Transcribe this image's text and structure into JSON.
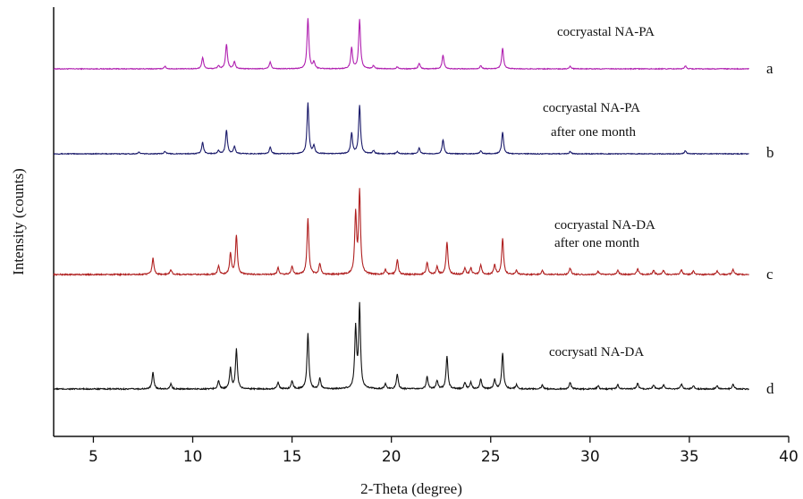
{
  "chart_data": {
    "type": "line",
    "title": "",
    "xlabel": "2-Theta (degree)",
    "ylabel": "Intensity (counts)",
    "xlim": [
      3,
      40
    ],
    "x_ticks": [
      "5",
      "10",
      "15",
      "20",
      "25",
      "30",
      "35",
      "40"
    ],
    "y_ticks_shown": false,
    "grid": false,
    "series": [
      {
        "name": "a",
        "annotation": [
          "cocryastal NA-PA"
        ],
        "color": "#b020b0",
        "offset": 75,
        "peaks": [
          [
            8.6,
            0.05
          ],
          [
            10.5,
            0.22
          ],
          [
            11.3,
            0.06
          ],
          [
            11.7,
            0.48
          ],
          [
            12.1,
            0.14
          ],
          [
            13.9,
            0.13
          ],
          [
            15.8,
            0.98
          ],
          [
            16.1,
            0.13
          ],
          [
            18.0,
            0.4
          ],
          [
            18.4,
            0.95
          ],
          [
            19.1,
            0.06
          ],
          [
            20.3,
            0.04
          ],
          [
            21.4,
            0.11
          ],
          [
            22.6,
            0.27
          ],
          [
            24.5,
            0.06
          ],
          [
            25.6,
            0.4
          ],
          [
            29.0,
            0.05
          ],
          [
            34.8,
            0.06
          ]
        ]
      },
      {
        "name": "b",
        "annotation": [
          "cocryastal NA-PA",
          "after one month"
        ],
        "color": "#1a1a6a",
        "offset": 50,
        "peaks": [
          [
            7.3,
            0.03
          ],
          [
            8.6,
            0.05
          ],
          [
            10.5,
            0.22
          ],
          [
            11.3,
            0.06
          ],
          [
            11.7,
            0.46
          ],
          [
            12.1,
            0.14
          ],
          [
            13.9,
            0.13
          ],
          [
            15.8,
            0.98
          ],
          [
            16.1,
            0.15
          ],
          [
            18.0,
            0.4
          ],
          [
            18.4,
            0.94
          ],
          [
            19.1,
            0.06
          ],
          [
            20.3,
            0.04
          ],
          [
            21.4,
            0.11
          ],
          [
            22.6,
            0.27
          ],
          [
            24.5,
            0.06
          ],
          [
            25.6,
            0.42
          ],
          [
            29.0,
            0.04
          ],
          [
            34.8,
            0.06
          ]
        ]
      },
      {
        "name": "c",
        "annotation": [
          "cocryastal NA-DA",
          "after one month"
        ],
        "color": "#b02020",
        "offset": 25,
        "peaks": [
          [
            8.0,
            0.2
          ],
          [
            8.9,
            0.06
          ],
          [
            11.3,
            0.1
          ],
          [
            11.9,
            0.25
          ],
          [
            12.2,
            0.48
          ],
          [
            14.3,
            0.08
          ],
          [
            15.0,
            0.1
          ],
          [
            15.8,
            0.68
          ],
          [
            16.4,
            0.13
          ],
          [
            18.2,
            0.73
          ],
          [
            18.4,
            1.0
          ],
          [
            19.7,
            0.06
          ],
          [
            20.3,
            0.18
          ],
          [
            21.8,
            0.15
          ],
          [
            22.3,
            0.1
          ],
          [
            22.8,
            0.4
          ],
          [
            23.7,
            0.08
          ],
          [
            24.0,
            0.08
          ],
          [
            24.5,
            0.12
          ],
          [
            25.2,
            0.12
          ],
          [
            25.6,
            0.44
          ],
          [
            26.3,
            0.05
          ],
          [
            27.6,
            0.05
          ],
          [
            29.0,
            0.08
          ],
          [
            30.4,
            0.04
          ],
          [
            31.4,
            0.05
          ],
          [
            32.4,
            0.07
          ],
          [
            33.2,
            0.05
          ],
          [
            33.7,
            0.05
          ],
          [
            34.6,
            0.06
          ],
          [
            35.2,
            0.04
          ],
          [
            36.4,
            0.04
          ],
          [
            37.2,
            0.06
          ]
        ]
      },
      {
        "name": "d",
        "annotation": [
          "cocrysatl NA-DA"
        ],
        "color": "#111111",
        "offset": 0,
        "peaks": [
          [
            8.0,
            0.2
          ],
          [
            8.9,
            0.06
          ],
          [
            11.3,
            0.1
          ],
          [
            11.9,
            0.25
          ],
          [
            12.2,
            0.48
          ],
          [
            14.3,
            0.08
          ],
          [
            15.0,
            0.1
          ],
          [
            15.8,
            0.68
          ],
          [
            16.4,
            0.13
          ],
          [
            18.2,
            0.73
          ],
          [
            18.4,
            1.0
          ],
          [
            19.7,
            0.06
          ],
          [
            20.3,
            0.18
          ],
          [
            21.8,
            0.15
          ],
          [
            22.3,
            0.1
          ],
          [
            22.8,
            0.4
          ],
          [
            23.7,
            0.08
          ],
          [
            24.0,
            0.08
          ],
          [
            24.5,
            0.12
          ],
          [
            25.2,
            0.12
          ],
          [
            25.6,
            0.44
          ],
          [
            26.3,
            0.05
          ],
          [
            27.6,
            0.05
          ],
          [
            29.0,
            0.08
          ],
          [
            30.4,
            0.04
          ],
          [
            31.4,
            0.05
          ],
          [
            32.4,
            0.07
          ],
          [
            33.2,
            0.05
          ],
          [
            33.7,
            0.05
          ],
          [
            34.6,
            0.06
          ],
          [
            35.2,
            0.04
          ],
          [
            36.4,
            0.04
          ],
          [
            37.2,
            0.06
          ]
        ]
      }
    ]
  }
}
